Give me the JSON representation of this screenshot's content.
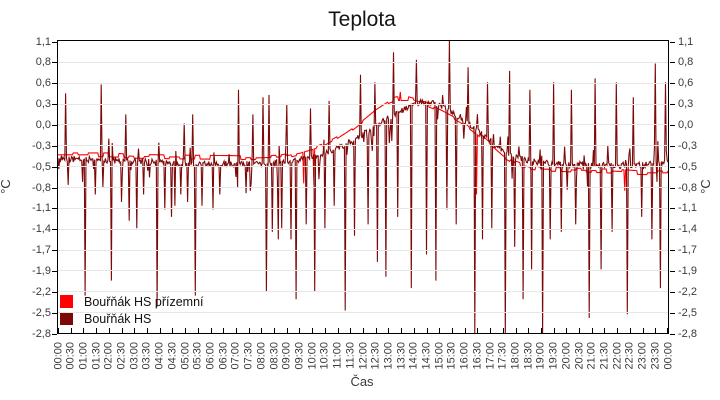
{
  "figure": {
    "title": "Teplota",
    "x_axis_label": "Čas",
    "y_axis_label_left": "°C",
    "y_axis_label_right": "°C"
  },
  "legend": {
    "items": [
      {
        "label": "Bouřňák HS přízemní"
      },
      {
        "label": "Bouřňák HS"
      }
    ]
  },
  "chart_data": {
    "type": "line",
    "title": "Teplota",
    "xlabel": "Čas",
    "ylabel": "°C",
    "x_range_hours": [
      0,
      24
    ],
    "ylim": [
      -2.8,
      1.1
    ],
    "grid": "horizontal",
    "legend_position": "bottom-left inside plot",
    "y_tick_labels": [
      "1,1",
      "0,8",
      "0,6",
      "0,3",
      "0,0",
      "-0,3",
      "-0,5",
      "-0,8",
      "-1,1",
      "-1,4",
      "-1,7",
      "-1,9",
      "-2,2",
      "-2,5",
      "-2,8"
    ],
    "x_tick_labels": [
      "00:00",
      "00:30",
      "01:00",
      "01:30",
      "02:00",
      "02:30",
      "03:00",
      "03:30",
      "04:00",
      "04:30",
      "05:00",
      "05:30",
      "06:00",
      "06:30",
      "07:00",
      "07:30",
      "08:00",
      "08:30",
      "09:00",
      "09:30",
      "10:00",
      "10:30",
      "11:00",
      "11:30",
      "12:00",
      "12:30",
      "13:00",
      "13:30",
      "14:00",
      "14:30",
      "15:00",
      "15:30",
      "16:00",
      "16:30",
      "17:00",
      "17:30",
      "18:00",
      "18:30",
      "19:00",
      "19:30",
      "20:00",
      "20:30",
      "21:00",
      "21:30",
      "22:00",
      "22:30",
      "23:00",
      "23:30",
      "00:00"
    ],
    "series": [
      {
        "name": "Bouřňák HS přízemní",
        "color": "#ff0000",
        "baseline_points": [
          [
            0,
            -0.42
          ],
          [
            2,
            -0.42
          ],
          [
            3,
            -0.44
          ],
          [
            5,
            -0.45
          ],
          [
            8,
            -0.46
          ],
          [
            8.7,
            -0.45
          ],
          [
            9.5,
            -0.4
          ],
          [
            10,
            -0.35
          ],
          [
            10.5,
            -0.29
          ],
          [
            11,
            -0.2
          ],
          [
            11.5,
            -0.09
          ],
          [
            12,
            0.04
          ],
          [
            12.5,
            0.18
          ],
          [
            13,
            0.29
          ],
          [
            13.3,
            0.33
          ],
          [
            13.8,
            0.33
          ],
          [
            14.3,
            0.28
          ],
          [
            15,
            0.19
          ],
          [
            15.5,
            0.1
          ],
          [
            16,
            0.0
          ],
          [
            16.5,
            -0.13
          ],
          [
            17,
            -0.28
          ],
          [
            17.5,
            -0.43
          ],
          [
            18,
            -0.53
          ],
          [
            18.5,
            -0.58
          ],
          [
            19,
            -0.61
          ],
          [
            20,
            -0.62
          ],
          [
            21,
            -0.63
          ],
          [
            22,
            -0.64
          ],
          [
            23,
            -0.66
          ],
          [
            24,
            -0.66
          ]
        ],
        "noise": {
          "seed": 7,
          "amp": 0.03,
          "quant": 0.025,
          "hold": 6
        },
        "spikes": [
          [
            9.65,
            -0.8
          ],
          [
            10.05,
            -0.82
          ],
          [
            13.45,
            0.42
          ],
          [
            16.45,
            -0.95
          ],
          [
            22.3,
            -0.9
          ]
        ]
      },
      {
        "name": "Bouřňák HS",
        "color": "#7d0808",
        "baseline_points": [
          [
            0,
            -0.47
          ],
          [
            1,
            -0.48
          ],
          [
            2,
            -0.49
          ],
          [
            3,
            -0.51
          ],
          [
            4,
            -0.52
          ],
          [
            5,
            -0.54
          ],
          [
            6,
            -0.55
          ],
          [
            7,
            -0.54
          ],
          [
            8,
            -0.53
          ],
          [
            9,
            -0.51
          ],
          [
            9.5,
            -0.48
          ],
          [
            10,
            -0.44
          ],
          [
            10.5,
            -0.4
          ],
          [
            11,
            -0.33
          ],
          [
            11.5,
            -0.25
          ],
          [
            12,
            -0.15
          ],
          [
            12.5,
            -0.04
          ],
          [
            13,
            0.08
          ],
          [
            13.5,
            0.17
          ],
          [
            14,
            0.25
          ],
          [
            14.4,
            0.29
          ],
          [
            14.8,
            0.27
          ],
          [
            15.2,
            0.2
          ],
          [
            15.6,
            0.12
          ],
          [
            16,
            0.03
          ],
          [
            16.5,
            -0.09
          ],
          [
            17,
            -0.23
          ],
          [
            17.5,
            -0.36
          ],
          [
            18,
            -0.45
          ],
          [
            18.5,
            -0.5
          ],
          [
            19,
            -0.53
          ],
          [
            20,
            -0.55
          ],
          [
            21,
            -0.55
          ],
          [
            22,
            -0.56
          ],
          [
            23,
            -0.56
          ],
          [
            24,
            -0.52
          ]
        ],
        "noise": {
          "seed": 13,
          "amp": 0.04,
          "quant": 0.01,
          "hold": 1,
          "micro": {
            "down_p": 0.06,
            "up_p": 0.05,
            "min": 0.06,
            "down_max": 0.38,
            "up_max": 0.28
          }
        },
        "spikes": [
          [
            0.3,
            0.4
          ],
          [
            0.4,
            -0.82
          ],
          [
            0.95,
            -0.78
          ],
          [
            1.08,
            -2.3
          ],
          [
            1.45,
            -0.95
          ],
          [
            1.7,
            0.52
          ],
          [
            1.75,
            -0.85
          ],
          [
            2.1,
            -2.1
          ],
          [
            2.5,
            -1.05
          ],
          [
            2.65,
            0.12
          ],
          [
            2.8,
            -1.3
          ],
          [
            3.1,
            -1.4
          ],
          [
            3.35,
            -0.95
          ],
          [
            3.9,
            -2.45
          ],
          [
            4.2,
            -1.15
          ],
          [
            4.45,
            -1.25
          ],
          [
            4.6,
            -1.1
          ],
          [
            4.85,
            -0.95
          ],
          [
            4.95,
            0.0
          ],
          [
            5.1,
            -1.05
          ],
          [
            5.3,
            0.12
          ],
          [
            5.4,
            -2.3
          ],
          [
            5.65,
            -1.1
          ],
          [
            6.1,
            -1.15
          ],
          [
            6.35,
            -0.95
          ],
          [
            7.05,
            -0.85
          ],
          [
            7.1,
            0.45
          ],
          [
            7.55,
            -0.9
          ],
          [
            7.65,
            0.12
          ],
          [
            8.05,
            0.35
          ],
          [
            8.2,
            -2.25
          ],
          [
            8.3,
            0.38
          ],
          [
            8.45,
            -1.45
          ],
          [
            8.65,
            -1.55
          ],
          [
            8.8,
            -1.4
          ],
          [
            9.0,
            0.25
          ],
          [
            9.15,
            -1.55
          ],
          [
            9.35,
            -2.35
          ],
          [
            9.75,
            -1.35
          ],
          [
            9.95,
            0.2
          ],
          [
            10.1,
            -2.25
          ],
          [
            10.5,
            -1.4
          ],
          [
            10.65,
            0.3
          ],
          [
            10.85,
            -1.1
          ],
          [
            11.3,
            -2.5
          ],
          [
            11.65,
            -1.5
          ],
          [
            11.9,
            0.65
          ],
          [
            12.2,
            -1.35
          ],
          [
            12.45,
            0.55
          ],
          [
            12.55,
            -1.85
          ],
          [
            12.9,
            -2.05
          ],
          [
            13.2,
            0.95
          ],
          [
            13.35,
            -1.25
          ],
          [
            13.9,
            -2.2
          ],
          [
            14.1,
            0.85
          ],
          [
            14.5,
            -1.75
          ],
          [
            14.85,
            -2.1
          ],
          [
            15.3,
            -1.15
          ],
          [
            15.4,
            1.1
          ],
          [
            15.65,
            -1.35
          ],
          [
            16.15,
            0.75
          ],
          [
            16.4,
            -2.8
          ],
          [
            16.7,
            -1.55
          ],
          [
            16.9,
            0.55
          ],
          [
            17.05,
            -1.4
          ],
          [
            17.6,
            -2.85
          ],
          [
            17.75,
            0.7
          ],
          [
            17.95,
            -1.65
          ],
          [
            18.3,
            -2.35
          ],
          [
            18.55,
            0.45
          ],
          [
            18.65,
            -1.95
          ],
          [
            19.05,
            -2.85
          ],
          [
            19.35,
            -1.55
          ],
          [
            19.5,
            0.55
          ],
          [
            19.8,
            -1.45
          ],
          [
            20.2,
            0.45
          ],
          [
            20.35,
            -1.35
          ],
          [
            20.9,
            -2.6
          ],
          [
            21.15,
            0.6
          ],
          [
            21.35,
            -1.95
          ],
          [
            21.8,
            -1.45
          ],
          [
            21.95,
            0.55
          ],
          [
            22.4,
            -2.55
          ],
          [
            22.65,
            0.35
          ],
          [
            22.95,
            -1.25
          ],
          [
            23.35,
            -1.55
          ],
          [
            23.5,
            0.8
          ],
          [
            23.7,
            -2.2
          ],
          [
            23.9,
            0.55
          ]
        ]
      }
    ]
  }
}
